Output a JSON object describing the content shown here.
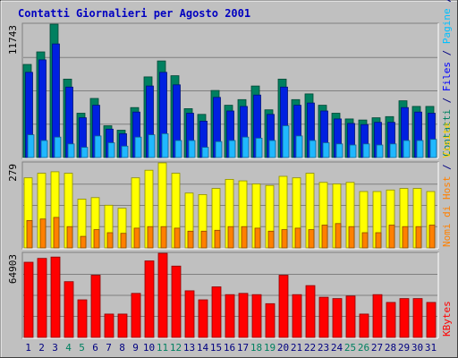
{
  "chart_data": {
    "type": "bar",
    "title": "Contatti Giornalieri per Agosto 2001",
    "categories": [
      "1",
      "2",
      "3",
      "4",
      "5",
      "6",
      "7",
      "8",
      "9",
      "10",
      "11",
      "12",
      "13",
      "14",
      "15",
      "16",
      "17",
      "18",
      "19",
      "20",
      "21",
      "22",
      "23",
      "24",
      "25",
      "26",
      "27",
      "28",
      "29",
      "30",
      "31"
    ],
    "weekend_days": [
      "4",
      "5",
      "11",
      "12",
      "18",
      "19",
      "25",
      "26"
    ],
    "panels": [
      {
        "id": "hits",
        "ymax_label": "11743",
        "ylim": [
          0,
          11743
        ],
        "series": [
          {
            "name": "Contatti",
            "color": "#008060",
            "values": [
              8200,
              9300,
              11743,
              6900,
              3900,
              5200,
              2800,
              2400,
              4400,
              7100,
              8500,
              7200,
              4300,
              3800,
              5900,
              4600,
              5100,
              6300,
              4200,
              6900,
              5100,
              5600,
              4600,
              3900,
              3400,
              3300,
              3500,
              3600,
              5000,
              4500,
              4500
            ]
          },
          {
            "name": "Files",
            "color": "#0020e0",
            "values": [
              7500,
              8600,
              10000,
              6200,
              3500,
              4600,
              2500,
              2100,
              4000,
              6300,
              7500,
              6400,
              3900,
              3200,
              5300,
              4100,
              4500,
              5500,
              3800,
              6200,
              4600,
              4800,
              4100,
              3400,
              3000,
              2900,
              3100,
              3100,
              4400,
              4000,
              3900
            ]
          },
          {
            "name": "Pagine",
            "color": "#20b8ff",
            "values": [
              2000,
              1500,
              1800,
              1200,
              900,
              1900,
              1300,
              1000,
              1800,
              2000,
              2100,
              1500,
              1500,
              900,
              1400,
              1500,
              1800,
              1700,
              1500,
              2800,
              1900,
              1500,
              1300,
              1200,
              1100,
              1200,
              1100,
              1200,
              1500,
              1500,
              1600
            ]
          }
        ],
        "side_label_parts": [
          {
            "text": "Contatti",
            "color": "#008060"
          },
          {
            "text": " / ",
            "color": "#000080"
          },
          {
            "text": "Files",
            "color": "#0000ff"
          },
          {
            "text": " / ",
            "color": "#000080"
          },
          {
            "text": "Pagine",
            "color": "#00c0ff"
          },
          {
            "text": " / ",
            "color": "#000080"
          },
          {
            "text": "Visite",
            "color": "#ffd000"
          }
        ]
      },
      {
        "id": "visits",
        "ymax_label": "279",
        "ylim": [
          0,
          279
        ],
        "series": [
          {
            "name": "Visite",
            "color": "#ffff00",
            "values": [
              230,
              245,
              250,
              245,
              160,
              165,
              140,
              130,
              230,
              255,
              279,
              245,
              180,
              175,
              195,
              225,
              220,
              210,
              205,
              235,
              230,
              245,
              215,
              210,
              215,
              185,
              185,
              190,
              195,
              195,
              185
            ]
          },
          {
            "name": "Nomi di Host",
            "color": "#ff8000",
            "values": [
              90,
              95,
              100,
              70,
              38,
              60,
              50,
              48,
              65,
              70,
              70,
              65,
              55,
              55,
              58,
              70,
              70,
              65,
              55,
              60,
              65,
              60,
              75,
              80,
              70,
              50,
              50,
              75,
              70,
              70,
              75
            ]
          }
        ],
        "side_label_parts": [
          {
            "text": "Nomi di Host",
            "color": "#ff8000"
          },
          {
            "text": " / ",
            "color": "#000080"
          },
          {
            "text": "Visite",
            "color": "#ffd000"
          }
        ]
      },
      {
        "id": "kbytes",
        "ymax_label": "64903",
        "ylim": [
          0,
          64903
        ],
        "series": [
          {
            "name": "KBytes",
            "color": "#ff0000",
            "values": [
              58000,
              61000,
              62000,
              43000,
              29000,
              48000,
              18000,
              18000,
              34000,
              59000,
              64903,
              55000,
              36000,
              29000,
              39000,
              33000,
              34000,
              33000,
              26000,
              48000,
              33000,
              40000,
              31000,
              30000,
              32000,
              18000,
              33000,
              27000,
              30000,
              30000,
              27000
            ]
          }
        ],
        "side_label_parts": [
          {
            "text": "KBytes",
            "color": "#ff0000"
          }
        ]
      }
    ]
  },
  "colors": {
    "background": "#c0c0c0",
    "plot": "#c0c0c0",
    "title": "#0000c0",
    "weekday_label": "#000080",
    "weekend_label": "#008060",
    "grid": "#808080"
  }
}
